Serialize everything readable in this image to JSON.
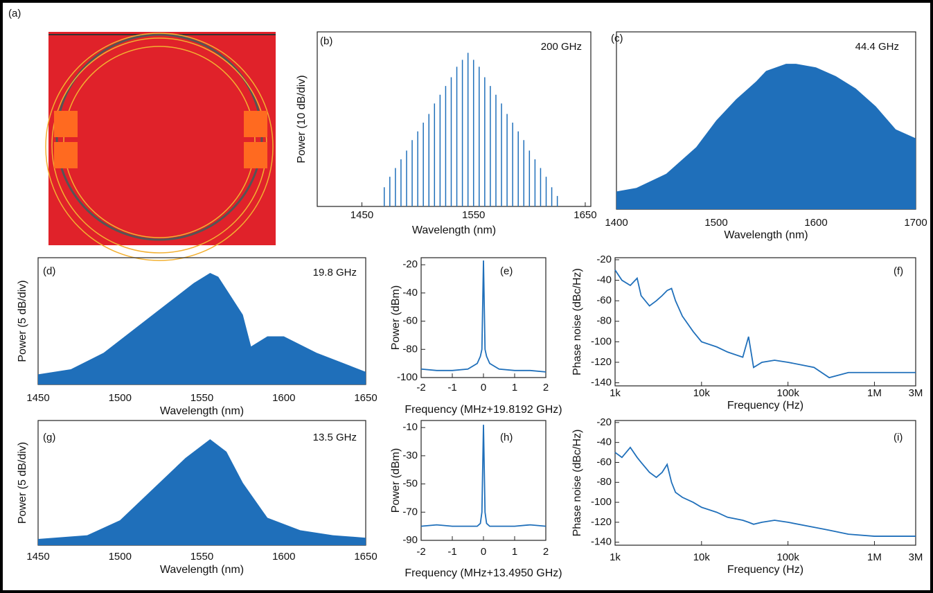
{
  "photo": {
    "label": "(a)"
  },
  "chart_data": [
    {
      "type": "comb",
      "label": "(b)",
      "annotation": "200 GHz",
      "x_label": "Wavelength (nm)",
      "y_label": "Power (10 dB/div)",
      "color": "#1f6fba",
      "xlim": [
        1410,
        1655
      ],
      "xticks": [
        1450,
        1550,
        1650
      ],
      "ylim": [
        0,
        100
      ],
      "x": [
        1470,
        1475,
        1480,
        1485,
        1490,
        1495,
        1500,
        1505,
        1510,
        1515,
        1520,
        1525,
        1530,
        1535,
        1540,
        1545,
        1550,
        1555,
        1560,
        1565,
        1570,
        1575,
        1580,
        1585,
        1590,
        1595,
        1600,
        1605,
        1610,
        1615,
        1620,
        1625
      ],
      "values": [
        11,
        17,
        22,
        27,
        32,
        38,
        43,
        48,
        53,
        59,
        64,
        69,
        74,
        80,
        84,
        88,
        84,
        80,
        74,
        69,
        64,
        59,
        53,
        48,
        43,
        38,
        32,
        27,
        22,
        17,
        11,
        6
      ]
    },
    {
      "type": "area",
      "label": "(c)",
      "annotation": "44.4 GHz",
      "x_label": "Wavelength (nm)",
      "color": "#1f6fba",
      "xlim": [
        1400,
        1700
      ],
      "xticks": [
        1400,
        1500,
        1600,
        1700
      ],
      "ylim": [
        0,
        100
      ],
      "x": [
        1400,
        1420,
        1450,
        1480,
        1500,
        1520,
        1540,
        1550,
        1560,
        1570,
        1580,
        1600,
        1620,
        1640,
        1660,
        1680,
        1700
      ],
      "values": [
        10,
        12,
        20,
        35,
        50,
        62,
        72,
        78,
        80,
        82,
        82,
        80,
        75,
        68,
        58,
        45,
        40
      ]
    },
    {
      "type": "area",
      "label": "(d)",
      "annotation": "19.8 GHz",
      "x_label": "Wavelength (nm)",
      "y_label": "Power (5 dB/div)",
      "color": "#1f6fba",
      "xlim": [
        1450,
        1650
      ],
      "xticks": [
        1450,
        1500,
        1550,
        1600,
        1650
      ],
      "ylim": [
        0,
        100
      ],
      "x": [
        1450,
        1470,
        1490,
        1510,
        1530,
        1545,
        1555,
        1560,
        1565,
        1575,
        1580,
        1590,
        1600,
        1620,
        1640,
        1650
      ],
      "values": [
        8,
        12,
        25,
        45,
        65,
        80,
        88,
        85,
        75,
        55,
        30,
        38,
        38,
        25,
        15,
        10
      ]
    },
    {
      "type": "line",
      "label": "(e)",
      "x_label": "Frequency (MHz+19.8192 GHz)",
      "y_label": "Power (dBm)",
      "color": "#1f6fba",
      "xlim": [
        -2,
        2
      ],
      "xticks": [
        -2,
        -1,
        0,
        1,
        2
      ],
      "ylim": [
        -100,
        -15
      ],
      "yticks": [
        -20,
        -40,
        -60,
        -80,
        -100
      ],
      "x": [
        -2,
        -1.5,
        -1,
        -0.5,
        -0.2,
        -0.1,
        -0.05,
        0,
        0.05,
        0.1,
        0.2,
        0.5,
        1,
        1.5,
        2
      ],
      "values": [
        -94,
        -95,
        -95,
        -94,
        -90,
        -85,
        -80,
        -17,
        -80,
        -85,
        -90,
        -94,
        -95,
        -95,
        -96
      ]
    },
    {
      "type": "line",
      "label": "(f)",
      "x_label": "Frequency (Hz)",
      "y_label": "Phase noise (dBc/Hz)",
      "color": "#1f6fba",
      "xscale": "log",
      "xlim": [
        1000,
        3000000
      ],
      "xticks": [
        {
          "value": 1000,
          "label": "1k"
        },
        {
          "value": 10000,
          "label": "10k"
        },
        {
          "value": 100000,
          "label": "100k"
        },
        {
          "value": 1000000,
          "label": "1M"
        },
        {
          "value": 3000000,
          "label": "3M"
        }
      ],
      "ylim": [
        -143,
        -18
      ],
      "yticks": [
        -20,
        -40,
        -60,
        -80,
        -100,
        -120,
        -140
      ],
      "x": [
        1000,
        1200,
        1500,
        1800,
        2000,
        2500,
        3000,
        3500,
        4000,
        4500,
        5000,
        6000,
        8000,
        10000,
        15000,
        20000,
        30000,
        35000,
        40000,
        50000,
        70000,
        100000,
        200000,
        300000,
        500000,
        1000000,
        3000000
      ],
      "values": [
        -30,
        -40,
        -45,
        -38,
        -55,
        -65,
        -60,
        -55,
        -50,
        -48,
        -60,
        -75,
        -90,
        -100,
        -105,
        -110,
        -115,
        -95,
        -125,
        -120,
        -118,
        -120,
        -125,
        -135,
        -130,
        -130,
        -130
      ]
    },
    {
      "type": "area",
      "label": "(g)",
      "annotation": "13.5 GHz",
      "x_label": "Wavelength (nm)",
      "y_label": "Power (5 dB/div)",
      "color": "#1f6fba",
      "xlim": [
        1450,
        1650
      ],
      "xticks": [
        1450,
        1500,
        1550,
        1600,
        1650
      ],
      "ylim": [
        0,
        100
      ],
      "x": [
        1450,
        1480,
        1500,
        1520,
        1540,
        1550,
        1555,
        1565,
        1575,
        1590,
        1610,
        1630,
        1650
      ],
      "values": [
        5,
        8,
        20,
        45,
        70,
        80,
        85,
        75,
        50,
        22,
        12,
        8,
        6
      ]
    },
    {
      "type": "line",
      "label": "(h)",
      "x_label": "Frequency (MHz+13.4950 GHz)",
      "y_label": "Power (dBm)",
      "color": "#1f6fba",
      "xlim": [
        -2,
        2
      ],
      "xticks": [
        -2,
        -1,
        0,
        1,
        2
      ],
      "ylim": [
        -90,
        -5
      ],
      "yticks": [
        -10,
        -30,
        -50,
        -70,
        -90
      ],
      "x": [
        -2,
        -1.5,
        -1,
        -0.5,
        -0.2,
        -0.1,
        -0.05,
        0,
        0.05,
        0.1,
        0.2,
        0.5,
        1,
        1.5,
        2
      ],
      "values": [
        -80,
        -79,
        -80,
        -80,
        -80,
        -78,
        -70,
        -8,
        -70,
        -78,
        -80,
        -80,
        -80,
        -79,
        -80
      ]
    },
    {
      "type": "line",
      "label": "(i)",
      "x_label": "Frequency (Hz)",
      "y_label": "Phase noise (dBc/Hz)",
      "color": "#1f6fba",
      "xscale": "log",
      "xlim": [
        1000,
        3000000
      ],
      "xticks": [
        {
          "value": 1000,
          "label": "1k"
        },
        {
          "value": 10000,
          "label": "10k"
        },
        {
          "value": 100000,
          "label": "100k"
        },
        {
          "value": 1000000,
          "label": "1M"
        },
        {
          "value": 3000000,
          "label": "3M"
        }
      ],
      "ylim": [
        -143,
        -18
      ],
      "yticks": [
        -20,
        -40,
        -60,
        -80,
        -100,
        -120,
        -140
      ],
      "x": [
        1000,
        1200,
        1500,
        1800,
        2000,
        2500,
        3000,
        3500,
        4000,
        4500,
        5000,
        6000,
        8000,
        10000,
        15000,
        20000,
        30000,
        35000,
        40000,
        50000,
        70000,
        100000,
        200000,
        300000,
        500000,
        1000000,
        3000000
      ],
      "values": [
        -50,
        -55,
        -45,
        -55,
        -60,
        -70,
        -75,
        -70,
        -62,
        -80,
        -90,
        -95,
        -100,
        -105,
        -110,
        -115,
        -118,
        -120,
        -122,
        -120,
        -118,
        -120,
        -125,
        -128,
        -132,
        -134,
        -134
      ]
    }
  ]
}
